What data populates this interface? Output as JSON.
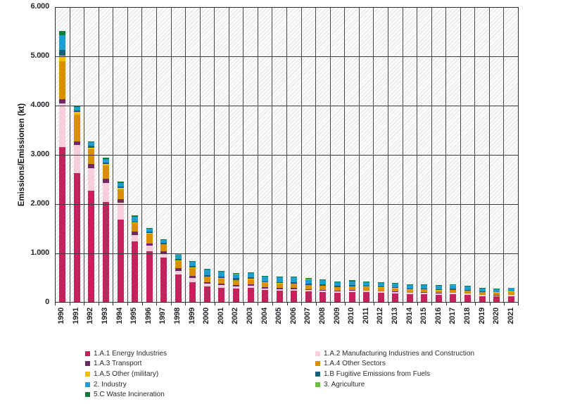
{
  "chart_data": {
    "type": "bar",
    "stacked": true,
    "title": "",
    "ylabel": "Emissions/Emissionen (kt)",
    "xlabel": "",
    "ylim": [
      0,
      6000
    ],
    "ytick_step": 1000,
    "ytick_labels": [
      "0",
      "1.000",
      "2.000",
      "3.000",
      "4.000",
      "5.000",
      "6.000"
    ],
    "grid": "both",
    "background": "hatched",
    "legend_position": "bottom-two-columns",
    "categories": [
      "1990",
      "1991",
      "1992",
      "1993",
      "1994",
      "1995",
      "1996",
      "1997",
      "1998",
      "1999",
      "2000",
      "2001",
      "2002",
      "2003",
      "2004",
      "2005",
      "2006",
      "2007",
      "2008",
      "2009",
      "2010",
      "2011",
      "2012",
      "2013",
      "2014",
      "2015",
      "2016",
      "2017",
      "2018",
      "2019",
      "2020",
      "2021"
    ],
    "series": [
      {
        "name": "1.A.1 Energy Industries",
        "color": "#C5215D",
        "values": [
          3140,
          2615,
          2260,
          2030,
          1670,
          1230,
          1030,
          900,
          555,
          400,
          315,
          285,
          270,
          285,
          245,
          230,
          230,
          210,
          200,
          185,
          200,
          200,
          185,
          175,
          155,
          160,
          145,
          155,
          140,
          115,
          110,
          120
        ]
      },
      {
        "name": "1.A.2 Manufacturing Industries and Construction",
        "color": "#F7CEDB",
        "values": [
          890,
          570,
          455,
          380,
          345,
          130,
          115,
          70,
          70,
          85,
          55,
          55,
          45,
          45,
          30,
          30,
          30,
          30,
          30,
          25,
          25,
          25,
          25,
          25,
          25,
          25,
          25,
          25,
          25,
          25,
          25,
          25
        ]
      },
      {
        "name": "1.A.3 Transport",
        "color": "#6F2963",
        "values": [
          85,
          70,
          85,
          85,
          70,
          70,
          45,
          55,
          55,
          45,
          30,
          35,
          30,
          30,
          25,
          25,
          20,
          20,
          15,
          15,
          15,
          10,
          10,
          10,
          10,
          10,
          10,
          10,
          10,
          10,
          5,
          5
        ]
      },
      {
        "name": "1.A.4 Other Sectors",
        "color": "#D98F00",
        "values": [
          770,
          550,
          300,
          270,
          200,
          170,
          200,
          140,
          155,
          155,
          115,
          100,
          100,
          100,
          90,
          90,
          90,
          85,
          85,
          75,
          75,
          70,
          70,
          65,
          60,
          60,
          55,
          55,
          55,
          50,
          50,
          55
        ]
      },
      {
        "name": "1.A.5 Other (military)",
        "color": "#F6BE00",
        "values": [
          115,
          55,
          30,
          30,
          30,
          15,
          15,
          10,
          10,
          10,
          5,
          5,
          5,
          5,
          5,
          5,
          5,
          5,
          5,
          5,
          5,
          5,
          5,
          5,
          5,
          5,
          5,
          5,
          5,
          5,
          5,
          5
        ]
      },
      {
        "name": "1.B Fugitive Emissions from Fuels",
        "color": "#14607A",
        "values": [
          115,
          30,
          40,
          30,
          30,
          15,
          25,
          20,
          25,
          40,
          30,
          40,
          30,
          30,
          25,
          25,
          25,
          25,
          25,
          20,
          20,
          20,
          20,
          20,
          15,
          15,
          15,
          15,
          15,
          10,
          10,
          10
        ]
      },
      {
        "name": "2. Industry",
        "color": "#1F9CD0",
        "values": [
          300,
          70,
          70,
          80,
          70,
          95,
          60,
          65,
          95,
          85,
          110,
          95,
          85,
          90,
          95,
          95,
          95,
          90,
          85,
          75,
          80,
          75,
          75,
          75,
          70,
          70,
          70,
          70,
          65,
          60,
          55,
          60
        ]
      },
      {
        "name": "3. Agriculture",
        "color": "#6FBE44",
        "values": [
          2,
          2,
          2,
          2,
          2,
          2,
          2,
          2,
          2,
          2,
          2,
          2,
          2,
          2,
          2,
          2,
          2,
          2,
          2,
          2,
          2,
          2,
          2,
          2,
          2,
          2,
          2,
          2,
          2,
          2,
          2,
          2
        ]
      },
      {
        "name": "5.C Waste Incineration",
        "color": "#107C3C",
        "values": [
          85,
          30,
          15,
          25,
          25,
          25,
          15,
          10,
          10,
          10,
          15,
          15,
          15,
          15,
          15,
          15,
          15,
          15,
          15,
          10,
          15,
          15,
          15,
          15,
          15,
          15,
          15,
          15,
          15,
          10,
          10,
          10
        ]
      }
    ],
    "legend_columns": [
      [
        0,
        2,
        4,
        6,
        8
      ],
      [
        1,
        3,
        5,
        7
      ]
    ]
  }
}
